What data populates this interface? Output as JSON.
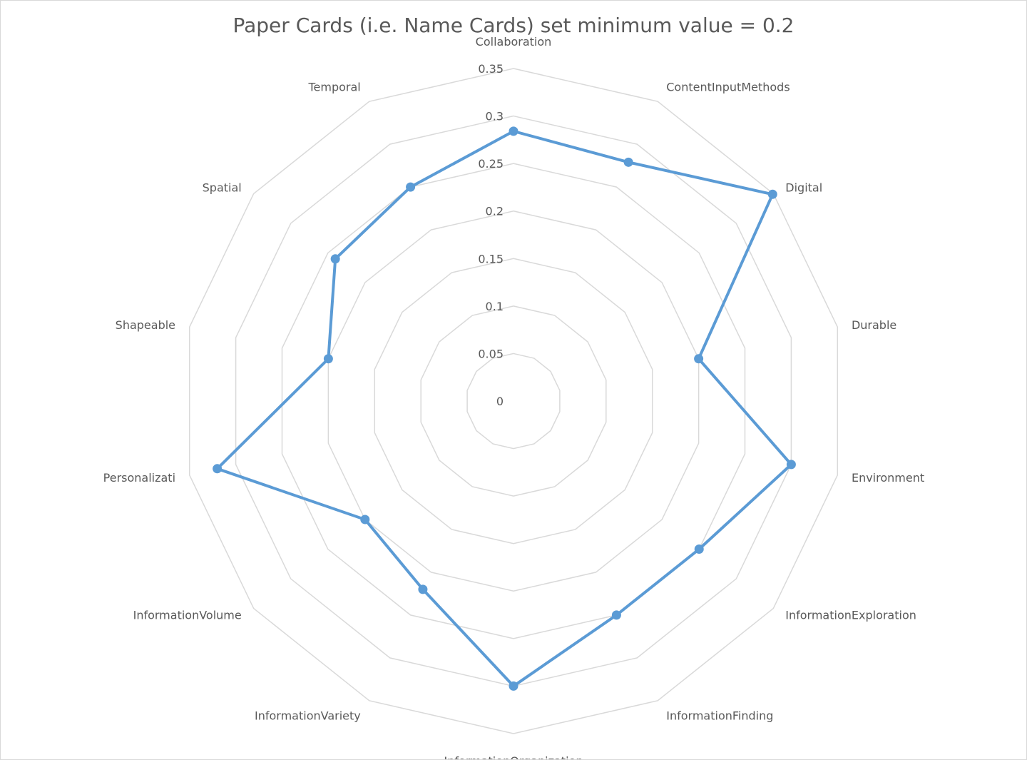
{
  "chart_data": {
    "type": "radar",
    "title": "Paper Cards (i.e. Name Cards) set minimum value = 0.2",
    "categories": [
      "Collaboration",
      "ContentInputMethods",
      "Digital",
      "Durable",
      "Environment",
      "InformationExploration",
      "InformationFinding",
      "InformationOrganization",
      "InformationVariety",
      "InformationVolume",
      "Personalizati",
      "Shapeable",
      "Spatial",
      "Temporal"
    ],
    "series": [
      {
        "color": "#5b9bd5",
        "values": [
          0.284,
          0.279,
          0.349,
          0.2,
          0.3,
          0.25,
          0.25,
          0.3,
          0.22,
          0.2,
          0.32,
          0.2,
          0.24,
          0.25
        ]
      }
    ],
    "rlim": [
      0,
      0.35
    ],
    "ticks": [
      {
        "value": 0,
        "label": "0"
      },
      {
        "value": 0.05,
        "label": "0.05"
      },
      {
        "value": 0.1,
        "label": "0.1"
      },
      {
        "value": 0.15,
        "label": "0.15"
      },
      {
        "value": 0.2,
        "label": "0.2"
      },
      {
        "value": 0.25,
        "label": "0.25"
      },
      {
        "value": 0.3,
        "label": "0.3"
      },
      {
        "value": 0.35,
        "label": "0.35"
      }
    ],
    "grid": true,
    "legend": "none"
  }
}
